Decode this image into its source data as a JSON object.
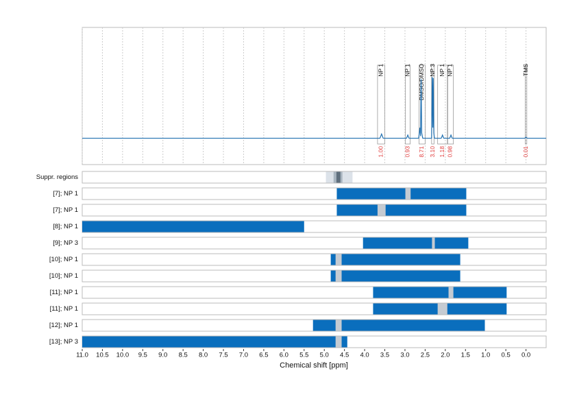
{
  "chart_data": {
    "type": "nmr",
    "xlabel": "Chemical shift [ppm]",
    "xlim": [
      11.0,
      -0.5
    ],
    "xticks": [
      {
        "value": 11,
        "label": "11.0"
      },
      10.5,
      {
        "value": 10,
        "label": "10.0"
      },
      9.5,
      {
        "value": 9,
        "label": "9.0"
      },
      8.5,
      {
        "value": 8,
        "label": "8.0"
      },
      7.5,
      {
        "value": 7,
        "label": "7.0"
      },
      6.5,
      {
        "value": 6,
        "label": "6.0"
      },
      5.5,
      {
        "value": 5,
        "label": "5.0"
      },
      4.5,
      {
        "value": 4,
        "label": "4.0"
      },
      3.5,
      {
        "value": 3,
        "label": "3.0"
      },
      2.5,
      {
        "value": 2,
        "label": "2.0"
      },
      1.5,
      {
        "value": 1,
        "label": "1.0"
      },
      0.5,
      {
        "value": 0,
        "label": "0.0"
      }
    ],
    "grid": true,
    "spectrum": {
      "color": "#1f6fb0",
      "ylim": [
        -0.25,
        1.05
      ],
      "x": [
        11.0,
        3.62,
        3.58,
        3.54,
        2.96,
        2.93,
        2.9,
        2.66,
        2.63,
        2.615,
        2.6,
        2.585,
        2.56,
        2.34,
        2.325,
        2.31,
        2.3,
        2.285,
        2.27,
        2.1,
        2.07,
        2.04,
        1.89,
        1.86,
        1.83,
        0.03,
        0.0,
        -0.03,
        -0.5
      ],
      "values": [
        0,
        0,
        0.04,
        0,
        0,
        0.03,
        0,
        0,
        0.1,
        0.02,
        0.56,
        0.05,
        0,
        0,
        0.58,
        0.1,
        0.57,
        0.05,
        0,
        0,
        0.03,
        0,
        0,
        0.03,
        0,
        0,
        0.01,
        0,
        0
      ]
    },
    "regions": [
      {
        "label": "NP 1",
        "range": [
          3.68,
          3.5
        ]
      },
      {
        "label": "NP 1",
        "range": [
          2.99,
          2.87
        ]
      },
      {
        "label": "DMSO/DMSO",
        "range": [
          2.65,
          2.5
        ]
      },
      {
        "label": "NP 3",
        "range": [
          2.34,
          2.28
        ]
      },
      {
        "label": "NP 1",
        "range": [
          2.19,
          1.95
        ]
      },
      {
        "label": "NP 1",
        "range": [
          1.94,
          1.8
        ]
      },
      {
        "label": "TMS",
        "range": [
          0.02,
          -0.02
        ]
      }
    ],
    "integrals": {
      "color": "#e03a3a",
      "values": [
        1.0,
        0.93,
        8.71,
        3.1,
        1.18,
        0.98,
        0.01
      ],
      "value_labels": [
        "1.00",
        "0.93",
        "8.71",
        "3.10",
        "1.18",
        "0.98",
        "0.01"
      ]
    },
    "suppression": {
      "label": "Suppr. regions",
      "ranges": [
        {
          "range": [
            4.96,
            4.3
          ],
          "color": "#dce2e9"
        },
        {
          "range": [
            4.77,
            4.55
          ],
          "color": "#a9b5c0"
        },
        {
          "range": [
            4.7,
            4.6
          ],
          "color": "#5f6f7d"
        }
      ]
    },
    "bar_color": "#0a6ebd",
    "gap_color": "#c5cbd2",
    "rows": [
      {
        "label": "[7]; NP 1",
        "range": [
          4.69,
          1.48
        ],
        "gaps": [
          [
            2.99,
            2.86
          ]
        ]
      },
      {
        "label": "[7]; NP 1",
        "range": [
          4.69,
          1.48
        ],
        "gaps": [
          [
            3.68,
            3.48
          ]
        ]
      },
      {
        "label": "[8]; NP 1",
        "range": [
          11.0,
          5.5
        ],
        "gaps": []
      },
      {
        "label": "[9]; NP 3",
        "range": [
          4.04,
          1.43
        ],
        "gaps": [
          [
            2.33,
            2.26
          ]
        ]
      },
      {
        "label": "[10]; NP 1",
        "range": [
          4.84,
          1.63
        ],
        "gaps": [
          [
            4.72,
            4.57
          ]
        ]
      },
      {
        "label": "[10]; NP 1",
        "range": [
          4.84,
          1.63
        ],
        "gaps": [
          [
            4.72,
            4.57
          ]
        ]
      },
      {
        "label": "[11]; NP 1",
        "range": [
          3.79,
          0.48
        ],
        "gaps": [
          [
            1.92,
            1.8
          ]
        ]
      },
      {
        "label": "[11]; NP 1",
        "range": [
          3.79,
          0.48
        ],
        "gaps": [
          [
            2.19,
            1.95
          ]
        ]
      },
      {
        "label": "[12]; NP 1",
        "range": [
          5.28,
          1.02
        ],
        "gaps": [
          [
            4.72,
            4.57
          ]
        ]
      },
      {
        "label": "[13]; NP 3",
        "range": [
          11.0,
          4.43
        ],
        "gaps": [
          [
            4.72,
            4.57
          ]
        ]
      }
    ]
  }
}
